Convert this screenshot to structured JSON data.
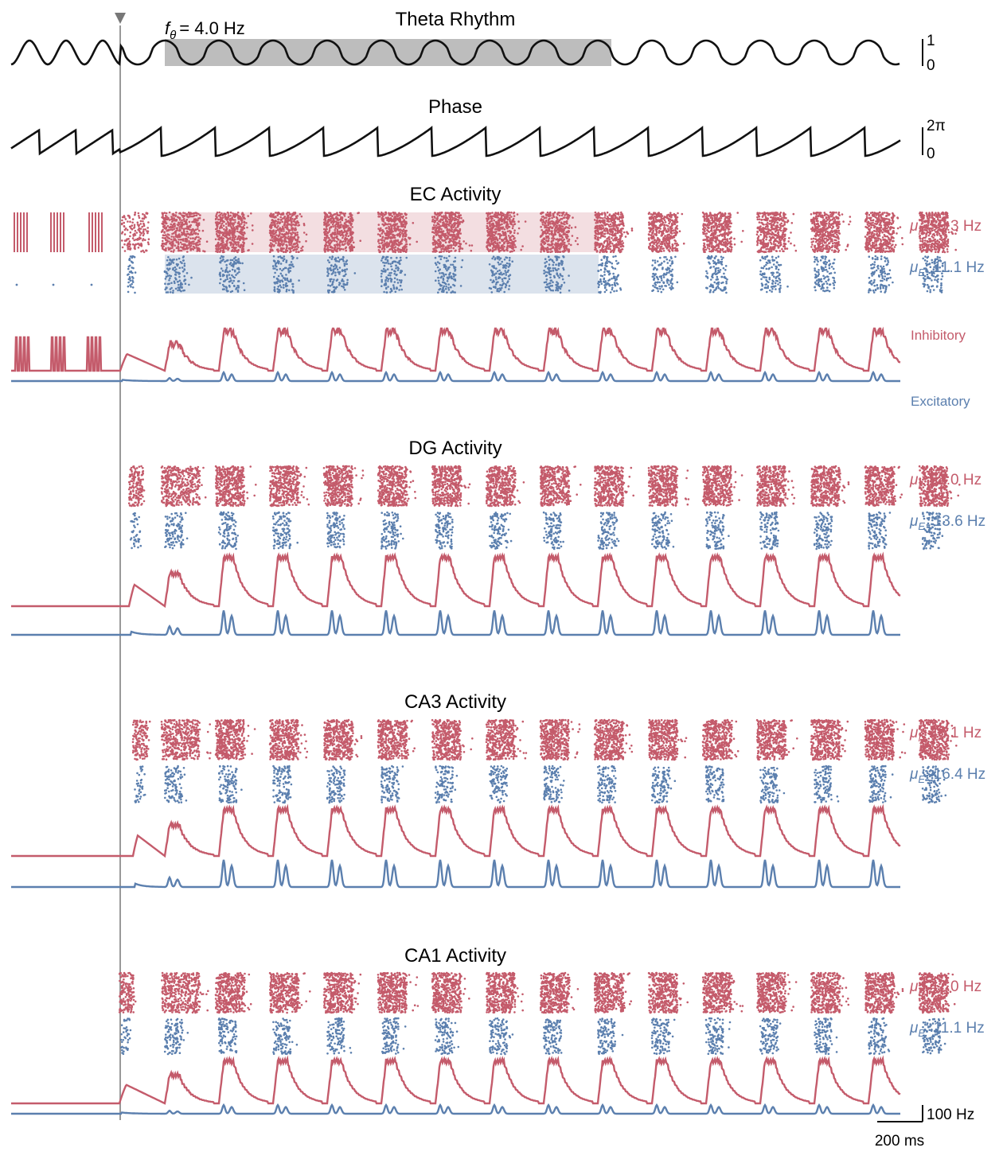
{
  "colors": {
    "inhibitory": "#c45b6b",
    "excitatory": "#5b7fae",
    "trace": "#111111",
    "marker": "#777777",
    "band": "#bdbdbd"
  },
  "chart_data": {
    "type": "line",
    "time_scale_bar": "200 ms",
    "rate_scale_bar": "100 Hz",
    "theta": {
      "title": "Theta Rhythm",
      "freq_label": "= 4.0 Hz",
      "freq_symbol_main": "f",
      "freq_symbol_sub": "θ",
      "frequency_hz": 4.0,
      "ylim": [
        0,
        1
      ],
      "y_ticks": [
        "1",
        "0"
      ]
    },
    "phase": {
      "title": "Phase",
      "ylim": [
        0,
        6.283
      ],
      "y_ticks": [
        "2π",
        "0"
      ]
    },
    "regions": [
      {
        "title": "EC Activity",
        "inh_rate_label": ": 59.3 Hz",
        "exc_rate_label": ": 11.1 Hz",
        "inh_rate_hz": 59.3,
        "exc_rate_hz": 11.1
      },
      {
        "title": "DG Activity",
        "inh_rate_label": ": 68.0 Hz",
        "exc_rate_label": ": 13.6 Hz",
        "inh_rate_hz": 68.0,
        "exc_rate_hz": 13.6
      },
      {
        "title": "CA3 Activity",
        "inh_rate_label": ": 43.1 Hz",
        "exc_rate_label": ": 16.4 Hz",
        "inh_rate_hz": 43.1,
        "exc_rate_hz": 16.4
      },
      {
        "title": "CA1 Activity",
        "inh_rate_label": ": 47.0 Hz",
        "exc_rate_label": ": 11.1 Hz",
        "inh_rate_hz": 47.0,
        "exc_rate_hz": 11.1
      }
    ],
    "population_labels": {
      "inhibitory": "Inhibitory",
      "excitatory": "Excitatory"
    },
    "mu_symbol": "μ",
    "mu_sub_inh": "I",
    "mu_sub_exc": "E"
  }
}
